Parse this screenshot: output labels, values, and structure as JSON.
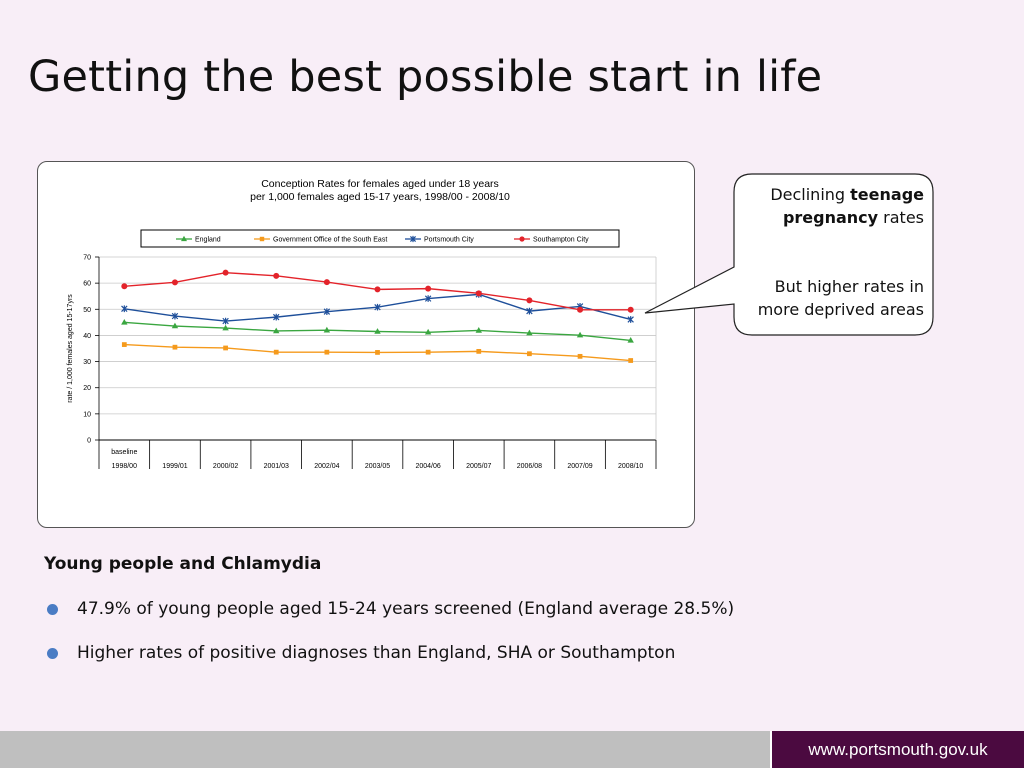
{
  "slide": {
    "title": "Getting the best possible start in life"
  },
  "callout": {
    "line1_prefix": "Declining ",
    "line1_bold": "teenage",
    "line2_bold": "pregnancy",
    "line2_suffix": " rates",
    "line3": "But higher rates in",
    "line4": "more deprived areas"
  },
  "section": {
    "heading": "Young people and Chlamydia",
    "bullets": [
      "47.9% of young people aged 15-24 years screened (England average 28.5%)",
      "Higher rates of positive diagnoses than England, SHA or Southampton"
    ]
  },
  "footer": {
    "url": "www.portsmouth.gov.uk"
  },
  "chart_data": {
    "type": "line",
    "title": "Conception Rates for females aged under 18 years",
    "subtitle": "per 1,000 females aged 15-17 years, 1998/00 - 2008/10",
    "ylabel": "rate / 1,000 females aged 15-17yrs",
    "xlabel": "",
    "ylim": [
      0,
      70
    ],
    "yticks": [
      0,
      10,
      20,
      30,
      40,
      50,
      60,
      70
    ],
    "baseline_label": "baseline",
    "categories": [
      "1998/00",
      "1999/01",
      "2000/02",
      "2001/03",
      "2002/04",
      "2003/05",
      "2004/06",
      "2005/07",
      "2006/08",
      "2007/09",
      "2008/10"
    ],
    "grid": true,
    "legend": "top",
    "series": [
      {
        "name": "England",
        "color": "#3aa640",
        "marker": "triangle",
        "values": [
          45.0,
          43.6,
          42.8,
          41.7,
          42.0,
          41.5,
          41.2,
          41.9,
          40.9,
          40.1,
          38.1
        ]
      },
      {
        "name": "Government Office of the South East",
        "color": "#f59a1c",
        "marker": "square",
        "values": [
          36.5,
          35.5,
          35.2,
          33.6,
          33.6,
          33.5,
          33.6,
          33.9,
          33.0,
          32.0,
          30.4
        ]
      },
      {
        "name": "Portsmouth City",
        "color": "#1e4f9a",
        "marker": "star",
        "values": [
          50.2,
          47.4,
          45.5,
          47.0,
          49.1,
          50.8,
          54.1,
          55.7,
          49.3,
          51.1,
          46.1
        ]
      },
      {
        "name": "Southampton City",
        "color": "#e3232a",
        "marker": "circle",
        "values": [
          58.8,
          60.3,
          64.0,
          62.8,
          60.4,
          57.6,
          57.9,
          56.1,
          53.4,
          49.8,
          49.8
        ]
      }
    ]
  }
}
